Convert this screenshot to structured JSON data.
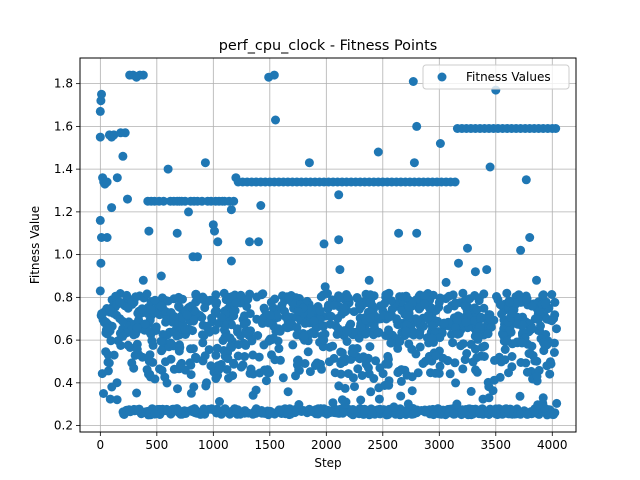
{
  "chart_data": {
    "type": "scatter",
    "title": "perf_cpu_clock - Fitness Points",
    "xlabel": "Step",
    "ylabel": "Fitness Value",
    "xlim": [
      -180,
      4210
    ],
    "ylim": [
      0.17,
      1.92
    ],
    "xticks": [
      0,
      500,
      1000,
      1500,
      2000,
      2500,
      3000,
      3500,
      4000
    ],
    "yticks": [
      0.2,
      0.4,
      0.6,
      0.8,
      1.0,
      1.2,
      1.4,
      1.6,
      1.8
    ],
    "xtick_labels": [
      "0",
      "500",
      "1000",
      "1500",
      "2000",
      "2500",
      "3000",
      "3500",
      "4000"
    ],
    "ytick_labels": [
      "0.2",
      "0.4",
      "0.6",
      "0.8",
      "1.0",
      "1.2",
      "1.4",
      "1.6",
      "1.8"
    ],
    "grid": true,
    "legend_position": "top-right",
    "series": [
      {
        "name": "Fitness Values",
        "color": "#1f77b4",
        "points": [
          [
            0,
            1.67
          ],
          [
            5,
            1.72
          ],
          [
            10,
            1.75
          ],
          [
            0,
            1.55
          ],
          [
            20,
            1.36
          ],
          [
            30,
            1.34
          ],
          [
            40,
            1.33
          ],
          [
            60,
            1.34
          ],
          [
            80,
            1.56
          ],
          [
            100,
            1.55
          ],
          [
            120,
            1.56
          ],
          [
            150,
            1.36
          ],
          [
            180,
            1.57
          ],
          [
            200,
            1.46
          ],
          [
            220,
            1.57
          ],
          [
            240,
            1.26
          ],
          [
            260,
            1.84
          ],
          [
            290,
            1.84
          ],
          [
            320,
            1.83
          ],
          [
            350,
            1.84
          ],
          [
            380,
            1.84
          ],
          [
            100,
            1.22
          ],
          [
            0,
            1.16
          ],
          [
            10,
            1.08
          ],
          [
            60,
            1.08
          ],
          [
            5,
            0.96
          ],
          [
            0,
            0.83
          ],
          [
            420,
            1.25
          ],
          [
            450,
            1.25
          ],
          [
            480,
            1.25
          ],
          [
            520,
            1.25
          ],
          [
            560,
            1.25
          ],
          [
            600,
            1.4
          ],
          [
            620,
            1.25
          ],
          [
            650,
            1.25
          ],
          [
            680,
            1.25
          ],
          [
            700,
            1.25
          ],
          [
            720,
            1.25
          ],
          [
            750,
            1.25
          ],
          [
            780,
            1.2
          ],
          [
            800,
            1.25
          ],
          [
            830,
            1.25
          ],
          [
            860,
            1.25
          ],
          [
            900,
            1.25
          ],
          [
            930,
            1.43
          ],
          [
            950,
            1.25
          ],
          [
            980,
            1.25
          ],
          [
            1000,
            1.14
          ],
          [
            1020,
            1.25
          ],
          [
            1050,
            1.25
          ],
          [
            1080,
            1.25
          ],
          [
            1100,
            1.25
          ],
          [
            1140,
            1.25
          ],
          [
            1160,
            1.21
          ],
          [
            1180,
            1.25
          ],
          [
            1200,
            1.36
          ],
          [
            430,
            1.11
          ],
          [
            680,
            1.1
          ],
          [
            820,
            0.99
          ],
          [
            860,
            0.99
          ],
          [
            1010,
            1.11
          ],
          [
            1040,
            1.06
          ],
          [
            1160,
            0.97
          ],
          [
            1320,
            1.06
          ],
          [
            1400,
            1.06
          ],
          [
            1420,
            1.23
          ],
          [
            540,
            0.9
          ],
          [
            380,
            0.88
          ],
          [
            1220,
            1.34
          ],
          [
            1260,
            1.34
          ],
          [
            1300,
            1.34
          ],
          [
            1340,
            1.34
          ],
          [
            1380,
            1.34
          ],
          [
            1420,
            1.34
          ],
          [
            1460,
            1.34
          ],
          [
            1500,
            1.34
          ],
          [
            1540,
            1.34
          ],
          [
            1580,
            1.34
          ],
          [
            1620,
            1.34
          ],
          [
            1660,
            1.34
          ],
          [
            1700,
            1.34
          ],
          [
            1740,
            1.34
          ],
          [
            1780,
            1.34
          ],
          [
            1820,
            1.34
          ],
          [
            1860,
            1.34
          ],
          [
            1900,
            1.34
          ],
          [
            1940,
            1.34
          ],
          [
            1980,
            1.34
          ],
          [
            2020,
            1.34
          ],
          [
            2060,
            1.34
          ],
          [
            2100,
            1.34
          ],
          [
            2140,
            1.34
          ],
          [
            2180,
            1.34
          ],
          [
            2220,
            1.34
          ],
          [
            2260,
            1.34
          ],
          [
            2300,
            1.34
          ],
          [
            2340,
            1.34
          ],
          [
            2380,
            1.34
          ],
          [
            2420,
            1.34
          ],
          [
            2460,
            1.34
          ],
          [
            2500,
            1.34
          ],
          [
            2540,
            1.34
          ],
          [
            2580,
            1.34
          ],
          [
            2620,
            1.34
          ],
          [
            2660,
            1.34
          ],
          [
            2700,
            1.34
          ],
          [
            2740,
            1.34
          ],
          [
            2780,
            1.34
          ],
          [
            2820,
            1.34
          ],
          [
            2860,
            1.34
          ],
          [
            2900,
            1.34
          ],
          [
            2940,
            1.34
          ],
          [
            2980,
            1.34
          ],
          [
            3020,
            1.34
          ],
          [
            3060,
            1.34
          ],
          [
            3100,
            1.34
          ],
          [
            3140,
            1.34
          ],
          [
            1490,
            1.83
          ],
          [
            1540,
            1.84
          ],
          [
            1550,
            1.63
          ],
          [
            1850,
            1.43
          ],
          [
            1980,
            1.05
          ],
          [
            2110,
            1.07
          ],
          [
            2110,
            1.28
          ],
          [
            2120,
            0.93
          ],
          [
            2460,
            1.48
          ],
          [
            2640,
            1.1
          ],
          [
            2770,
            1.81
          ],
          [
            2780,
            1.43
          ],
          [
            2800,
            1.6
          ],
          [
            2800,
            1.1
          ],
          [
            3010,
            1.52
          ],
          [
            3060,
            0.87
          ],
          [
            3170,
            0.96
          ],
          [
            3250,
            1.03
          ],
          [
            3320,
            0.92
          ],
          [
            3420,
            0.93
          ],
          [
            3450,
            1.41
          ],
          [
            3500,
            1.77
          ],
          [
            3720,
            1.02
          ],
          [
            3770,
            1.35
          ],
          [
            3800,
            1.08
          ],
          [
            3860,
            0.88
          ],
          [
            2380,
            0.88
          ],
          [
            1990,
            0.85
          ],
          [
            1470,
            0.41
          ],
          [
            3780,
            0.45
          ],
          [
            3920,
            0.33
          ],
          [
            3440,
            0.33
          ],
          [
            3160,
            1.59
          ],
          [
            3200,
            1.59
          ],
          [
            3240,
            1.59
          ],
          [
            3280,
            1.59
          ],
          [
            3320,
            1.59
          ],
          [
            3360,
            1.59
          ],
          [
            3400,
            1.59
          ],
          [
            3440,
            1.59
          ],
          [
            3480,
            1.59
          ],
          [
            3520,
            1.59
          ],
          [
            3560,
            1.59
          ],
          [
            3600,
            1.59
          ],
          [
            3640,
            1.59
          ],
          [
            3680,
            1.59
          ],
          [
            3720,
            1.59
          ],
          [
            3760,
            1.59
          ],
          [
            3800,
            1.59
          ],
          [
            3840,
            1.59
          ],
          [
            3880,
            1.59
          ],
          [
            3920,
            1.59
          ],
          [
            3960,
            1.59
          ],
          [
            4000,
            1.59
          ],
          [
            4030,
            1.59
          ]
        ]
      }
    ],
    "bands": [
      {
        "y_min": 0.62,
        "y_max": 0.82,
        "x_min": 0,
        "x_max": 4040,
        "count": 700
      },
      {
        "y_min": 0.44,
        "y_max": 0.62,
        "x_min": 0,
        "x_max": 4040,
        "count": 260
      },
      {
        "y_min": 0.25,
        "y_max": 0.28,
        "x_min": 200,
        "x_max": 4040,
        "count": 380
      },
      {
        "y_min": 0.28,
        "y_max": 0.44,
        "x_min": 0,
        "x_max": 4040,
        "count": 70
      }
    ]
  }
}
